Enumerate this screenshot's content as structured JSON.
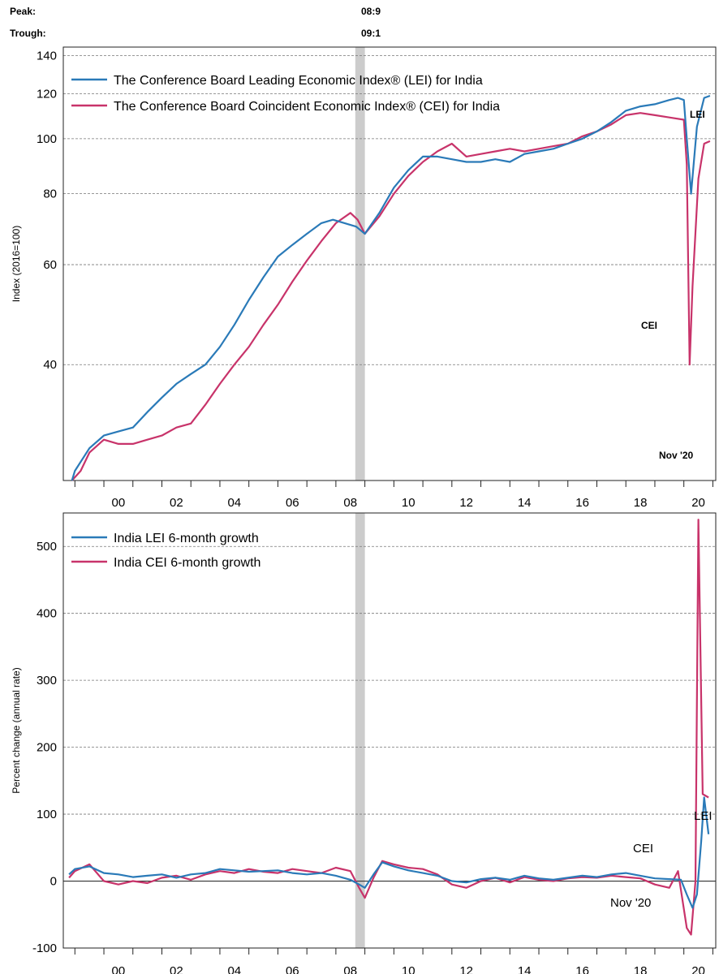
{
  "header": {
    "peak_label": "Peak:",
    "peak_value": "08:9",
    "trough_label": "Trough:",
    "trough_value": "09:1"
  },
  "colors": {
    "lei": "#2a7ab8",
    "cei": "#c8336a",
    "recession": "#cccccc",
    "grid": "#777777"
  },
  "chart_data": [
    {
      "type": "line",
      "ylabel": "Index (2016=100)",
      "yscale": "log",
      "ylim": [
        25,
        145
      ],
      "yticks": [
        40,
        60,
        80,
        100,
        120,
        140
      ],
      "xlim": [
        1998.6,
        2021.1
      ],
      "xticks": [
        "00",
        "02",
        "04",
        "06",
        "08",
        "10",
        "12",
        "14",
        "16",
        "18",
        "20"
      ],
      "recession": {
        "start": 2008.67,
        "end": 2009.0
      },
      "legend_position": "top-left",
      "annotations": {
        "lei": "LEI",
        "cei": "CEI",
        "date": "Nov '20"
      },
      "series": [
        {
          "key": "lei",
          "name": "The Conference Board Leading Economic Index® (LEI) for India",
          "points": [
            [
              1998.9,
              25
            ],
            [
              1999.0,
              26
            ],
            [
              1999.5,
              28.5
            ],
            [
              2000.0,
              30
            ],
            [
              2000.5,
              30.5
            ],
            [
              2001.0,
              31
            ],
            [
              2001.5,
              33
            ],
            [
              2002.0,
              35
            ],
            [
              2002.5,
              37
            ],
            [
              2003.0,
              38.5
            ],
            [
              2003.5,
              40
            ],
            [
              2004.0,
              43
            ],
            [
              2004.5,
              47
            ],
            [
              2005.0,
              52
            ],
            [
              2005.5,
              57
            ],
            [
              2006.0,
              62
            ],
            [
              2006.5,
              65
            ],
            [
              2007.0,
              68
            ],
            [
              2007.5,
              71
            ],
            [
              2007.9,
              72
            ],
            [
              2008.3,
              71
            ],
            [
              2008.7,
              70
            ],
            [
              2009.0,
              68
            ],
            [
              2009.5,
              74
            ],
            [
              2010.0,
              82
            ],
            [
              2010.5,
              88
            ],
            [
              2011.0,
              93
            ],
            [
              2011.5,
              93
            ],
            [
              2012.0,
              92
            ],
            [
              2012.5,
              91
            ],
            [
              2013.0,
              91
            ],
            [
              2013.5,
              92
            ],
            [
              2014.0,
              91
            ],
            [
              2014.5,
              94
            ],
            [
              2015.0,
              95
            ],
            [
              2015.5,
              96
            ],
            [
              2016.0,
              98
            ],
            [
              2016.5,
              100
            ],
            [
              2017.0,
              103
            ],
            [
              2017.5,
              107
            ],
            [
              2018.0,
              112
            ],
            [
              2018.5,
              114
            ],
            [
              2019.0,
              115
            ],
            [
              2019.5,
              117
            ],
            [
              2019.8,
              118
            ],
            [
              2020.0,
              117
            ],
            [
              2020.1,
              100
            ],
            [
              2020.25,
              80
            ],
            [
              2020.45,
              105
            ],
            [
              2020.7,
              118
            ],
            [
              2020.9,
              119
            ]
          ]
        },
        {
          "key": "cei",
          "name": "The Conference Board Coincident Economic Index® (CEI) for India",
          "points": [
            [
              1998.9,
              25
            ],
            [
              1999.2,
              26
            ],
            [
              1999.5,
              28
            ],
            [
              2000.0,
              29.5
            ],
            [
              2000.5,
              29
            ],
            [
              2001.0,
              29
            ],
            [
              2001.5,
              29.5
            ],
            [
              2002.0,
              30
            ],
            [
              2002.5,
              31
            ],
            [
              2003.0,
              31.5
            ],
            [
              2003.5,
              34
            ],
            [
              2004.0,
              37
            ],
            [
              2004.5,
              40
            ],
            [
              2005.0,
              43
            ],
            [
              2005.5,
              47
            ],
            [
              2006.0,
              51
            ],
            [
              2006.5,
              56
            ],
            [
              2007.0,
              61
            ],
            [
              2007.5,
              66
            ],
            [
              2008.0,
              71
            ],
            [
              2008.5,
              74
            ],
            [
              2008.75,
              72
            ],
            [
              2009.0,
              68
            ],
            [
              2009.5,
              73
            ],
            [
              2010.0,
              80
            ],
            [
              2010.5,
              86
            ],
            [
              2011.0,
              91
            ],
            [
              2011.5,
              95
            ],
            [
              2012.0,
              98
            ],
            [
              2012.5,
              93
            ],
            [
              2013.0,
              94
            ],
            [
              2013.5,
              95
            ],
            [
              2014.0,
              96
            ],
            [
              2014.5,
              95
            ],
            [
              2015.0,
              96
            ],
            [
              2015.5,
              97
            ],
            [
              2016.0,
              98
            ],
            [
              2016.5,
              101
            ],
            [
              2017.0,
              103
            ],
            [
              2017.5,
              106
            ],
            [
              2018.0,
              110
            ],
            [
              2018.5,
              111
            ],
            [
              2019.0,
              110
            ],
            [
              2019.5,
              109
            ],
            [
              2020.0,
              108
            ],
            [
              2020.1,
              90
            ],
            [
              2020.2,
              40
            ],
            [
              2020.3,
              55
            ],
            [
              2020.5,
              85
            ],
            [
              2020.7,
              98
            ],
            [
              2020.9,
              99
            ]
          ]
        }
      ]
    },
    {
      "type": "line",
      "ylabel": "Percent change (annual rate)",
      "ylim": [
        -100,
        550
      ],
      "yticks": [
        -100,
        0,
        100,
        200,
        300,
        400,
        500
      ],
      "xlim": [
        1998.6,
        2021.1
      ],
      "xticks": [
        "00",
        "02",
        "04",
        "06",
        "08",
        "10",
        "12",
        "14",
        "16",
        "18",
        "20"
      ],
      "recession": {
        "start": 2008.67,
        "end": 2009.0
      },
      "legend_position": "top-left",
      "annotations": {
        "lei": "LEI",
        "cei": "CEI",
        "date": "Nov '20"
      },
      "series": [
        {
          "key": "lei",
          "name": "India LEI 6-month growth",
          "points": [
            [
              1998.8,
              10
            ],
            [
              1999.0,
              18
            ],
            [
              1999.5,
              22
            ],
            [
              2000.0,
              12
            ],
            [
              2000.5,
              10
            ],
            [
              2001.0,
              6
            ],
            [
              2001.5,
              8
            ],
            [
              2002.0,
              10
            ],
            [
              2002.5,
              5
            ],
            [
              2003.0,
              10
            ],
            [
              2003.5,
              12
            ],
            [
              2004.0,
              18
            ],
            [
              2004.5,
              16
            ],
            [
              2005.0,
              14
            ],
            [
              2005.5,
              15
            ],
            [
              2006.0,
              16
            ],
            [
              2006.5,
              12
            ],
            [
              2007.0,
              10
            ],
            [
              2007.5,
              12
            ],
            [
              2008.0,
              8
            ],
            [
              2008.5,
              2
            ],
            [
              2008.8,
              -5
            ],
            [
              2009.0,
              -10
            ],
            [
              2009.3,
              10
            ],
            [
              2009.6,
              28
            ],
            [
              2010.0,
              22
            ],
            [
              2010.5,
              16
            ],
            [
              2011.0,
              12
            ],
            [
              2011.5,
              8
            ],
            [
              2012.0,
              0
            ],
            [
              2012.5,
              -2
            ],
            [
              2013.0,
              3
            ],
            [
              2013.5,
              5
            ],
            [
              2014.0,
              2
            ],
            [
              2014.5,
              8
            ],
            [
              2015.0,
              4
            ],
            [
              2015.5,
              2
            ],
            [
              2016.0,
              5
            ],
            [
              2016.5,
              8
            ],
            [
              2017.0,
              6
            ],
            [
              2017.5,
              10
            ],
            [
              2018.0,
              12
            ],
            [
              2018.5,
              8
            ],
            [
              2019.0,
              4
            ],
            [
              2019.5,
              3
            ],
            [
              2019.9,
              2
            ],
            [
              2020.1,
              -20
            ],
            [
              2020.3,
              -40
            ],
            [
              2020.45,
              -20
            ],
            [
              2020.6,
              60
            ],
            [
              2020.7,
              125
            ],
            [
              2020.85,
              70
            ]
          ]
        },
        {
          "key": "cei",
          "name": "India CEI 6-month growth",
          "points": [
            [
              1998.8,
              5
            ],
            [
              1999.0,
              15
            ],
            [
              1999.5,
              25
            ],
            [
              2000.0,
              0
            ],
            [
              2000.5,
              -5
            ],
            [
              2001.0,
              0
            ],
            [
              2001.5,
              -3
            ],
            [
              2002.0,
              5
            ],
            [
              2002.5,
              8
            ],
            [
              2003.0,
              2
            ],
            [
              2003.5,
              10
            ],
            [
              2004.0,
              15
            ],
            [
              2004.5,
              12
            ],
            [
              2005.0,
              18
            ],
            [
              2005.5,
              14
            ],
            [
              2006.0,
              12
            ],
            [
              2006.5,
              18
            ],
            [
              2007.0,
              15
            ],
            [
              2007.5,
              12
            ],
            [
              2008.0,
              20
            ],
            [
              2008.5,
              15
            ],
            [
              2008.8,
              -10
            ],
            [
              2009.0,
              -25
            ],
            [
              2009.3,
              5
            ],
            [
              2009.6,
              30
            ],
            [
              2010.0,
              25
            ],
            [
              2010.5,
              20
            ],
            [
              2011.0,
              18
            ],
            [
              2011.5,
              10
            ],
            [
              2012.0,
              -5
            ],
            [
              2012.5,
              -10
            ],
            [
              2013.0,
              0
            ],
            [
              2013.5,
              5
            ],
            [
              2014.0,
              -2
            ],
            [
              2014.5,
              6
            ],
            [
              2015.0,
              2
            ],
            [
              2015.5,
              0
            ],
            [
              2016.0,
              4
            ],
            [
              2016.5,
              6
            ],
            [
              2017.0,
              5
            ],
            [
              2017.5,
              8
            ],
            [
              2018.0,
              6
            ],
            [
              2018.5,
              4
            ],
            [
              2019.0,
              -5
            ],
            [
              2019.5,
              -10
            ],
            [
              2019.8,
              15
            ],
            [
              2020.1,
              -70
            ],
            [
              2020.25,
              -80
            ],
            [
              2020.4,
              0
            ],
            [
              2020.5,
              540
            ],
            [
              2020.65,
              130
            ],
            [
              2020.85,
              125
            ]
          ]
        }
      ]
    }
  ]
}
